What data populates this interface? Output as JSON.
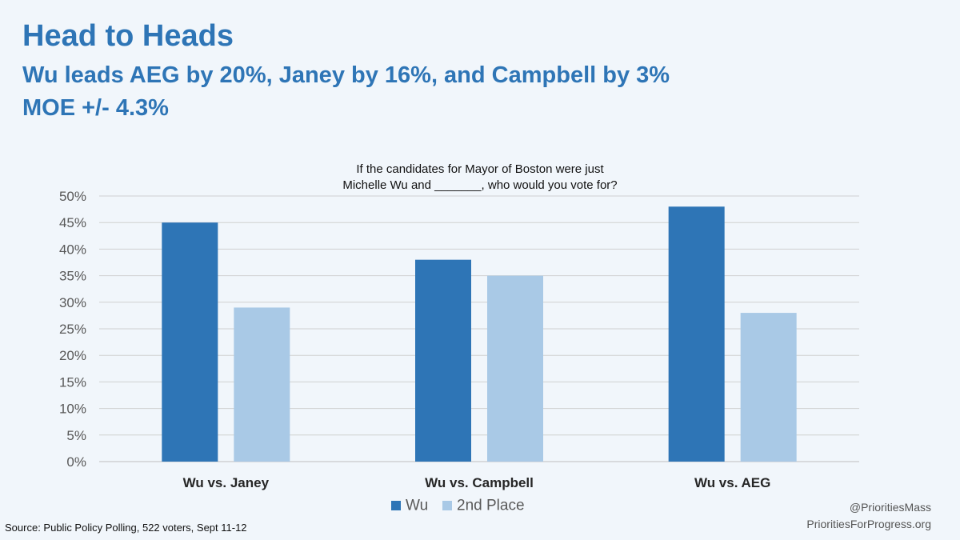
{
  "header": {
    "title": "Head to Heads",
    "subtitle_line1": "Wu leads AEG by 20%, Janey by 16%, and Campbell by 3%",
    "subtitle_line2": "MOE +/- 4.3%"
  },
  "footer": {
    "source": "Source: Public Policy Polling, 522 voters, Sept 11-12",
    "handle": "@PrioritiesMass",
    "website": "PrioritiesForProgress.org"
  },
  "colors": {
    "background": "#f1f6fb",
    "accent": "#2e75b6",
    "wu_bar": "#2e75b6",
    "second_bar": "#a9c9e6",
    "gridline": "#d0d0d0"
  },
  "chart_data": {
    "type": "bar",
    "title": "If the candidates for Mayor of Boston were just\nMichelle Wu and _______, who would you vote for?",
    "title_lines": [
      "If the candidates for Mayor of Boston were just",
      "Michelle Wu and _______, who would you vote for?"
    ],
    "categories": [
      "Wu vs. Janey",
      "Wu vs. Campbell",
      "Wu vs. AEG"
    ],
    "series": [
      {
        "name": "Wu",
        "values": [
          45,
          38,
          48
        ]
      },
      {
        "name": "2nd Place",
        "values": [
          29,
          35,
          28
        ]
      }
    ],
    "ylim": [
      0,
      50
    ],
    "yticks": [
      0,
      5,
      10,
      15,
      20,
      25,
      30,
      35,
      40,
      45,
      50
    ],
    "ytick_labels": [
      "0%",
      "5%",
      "10%",
      "15%",
      "20%",
      "25%",
      "30%",
      "35%",
      "40%",
      "45%",
      "50%"
    ],
    "xlabel": "",
    "ylabel": "",
    "grid": true,
    "legend_position": "bottom"
  }
}
